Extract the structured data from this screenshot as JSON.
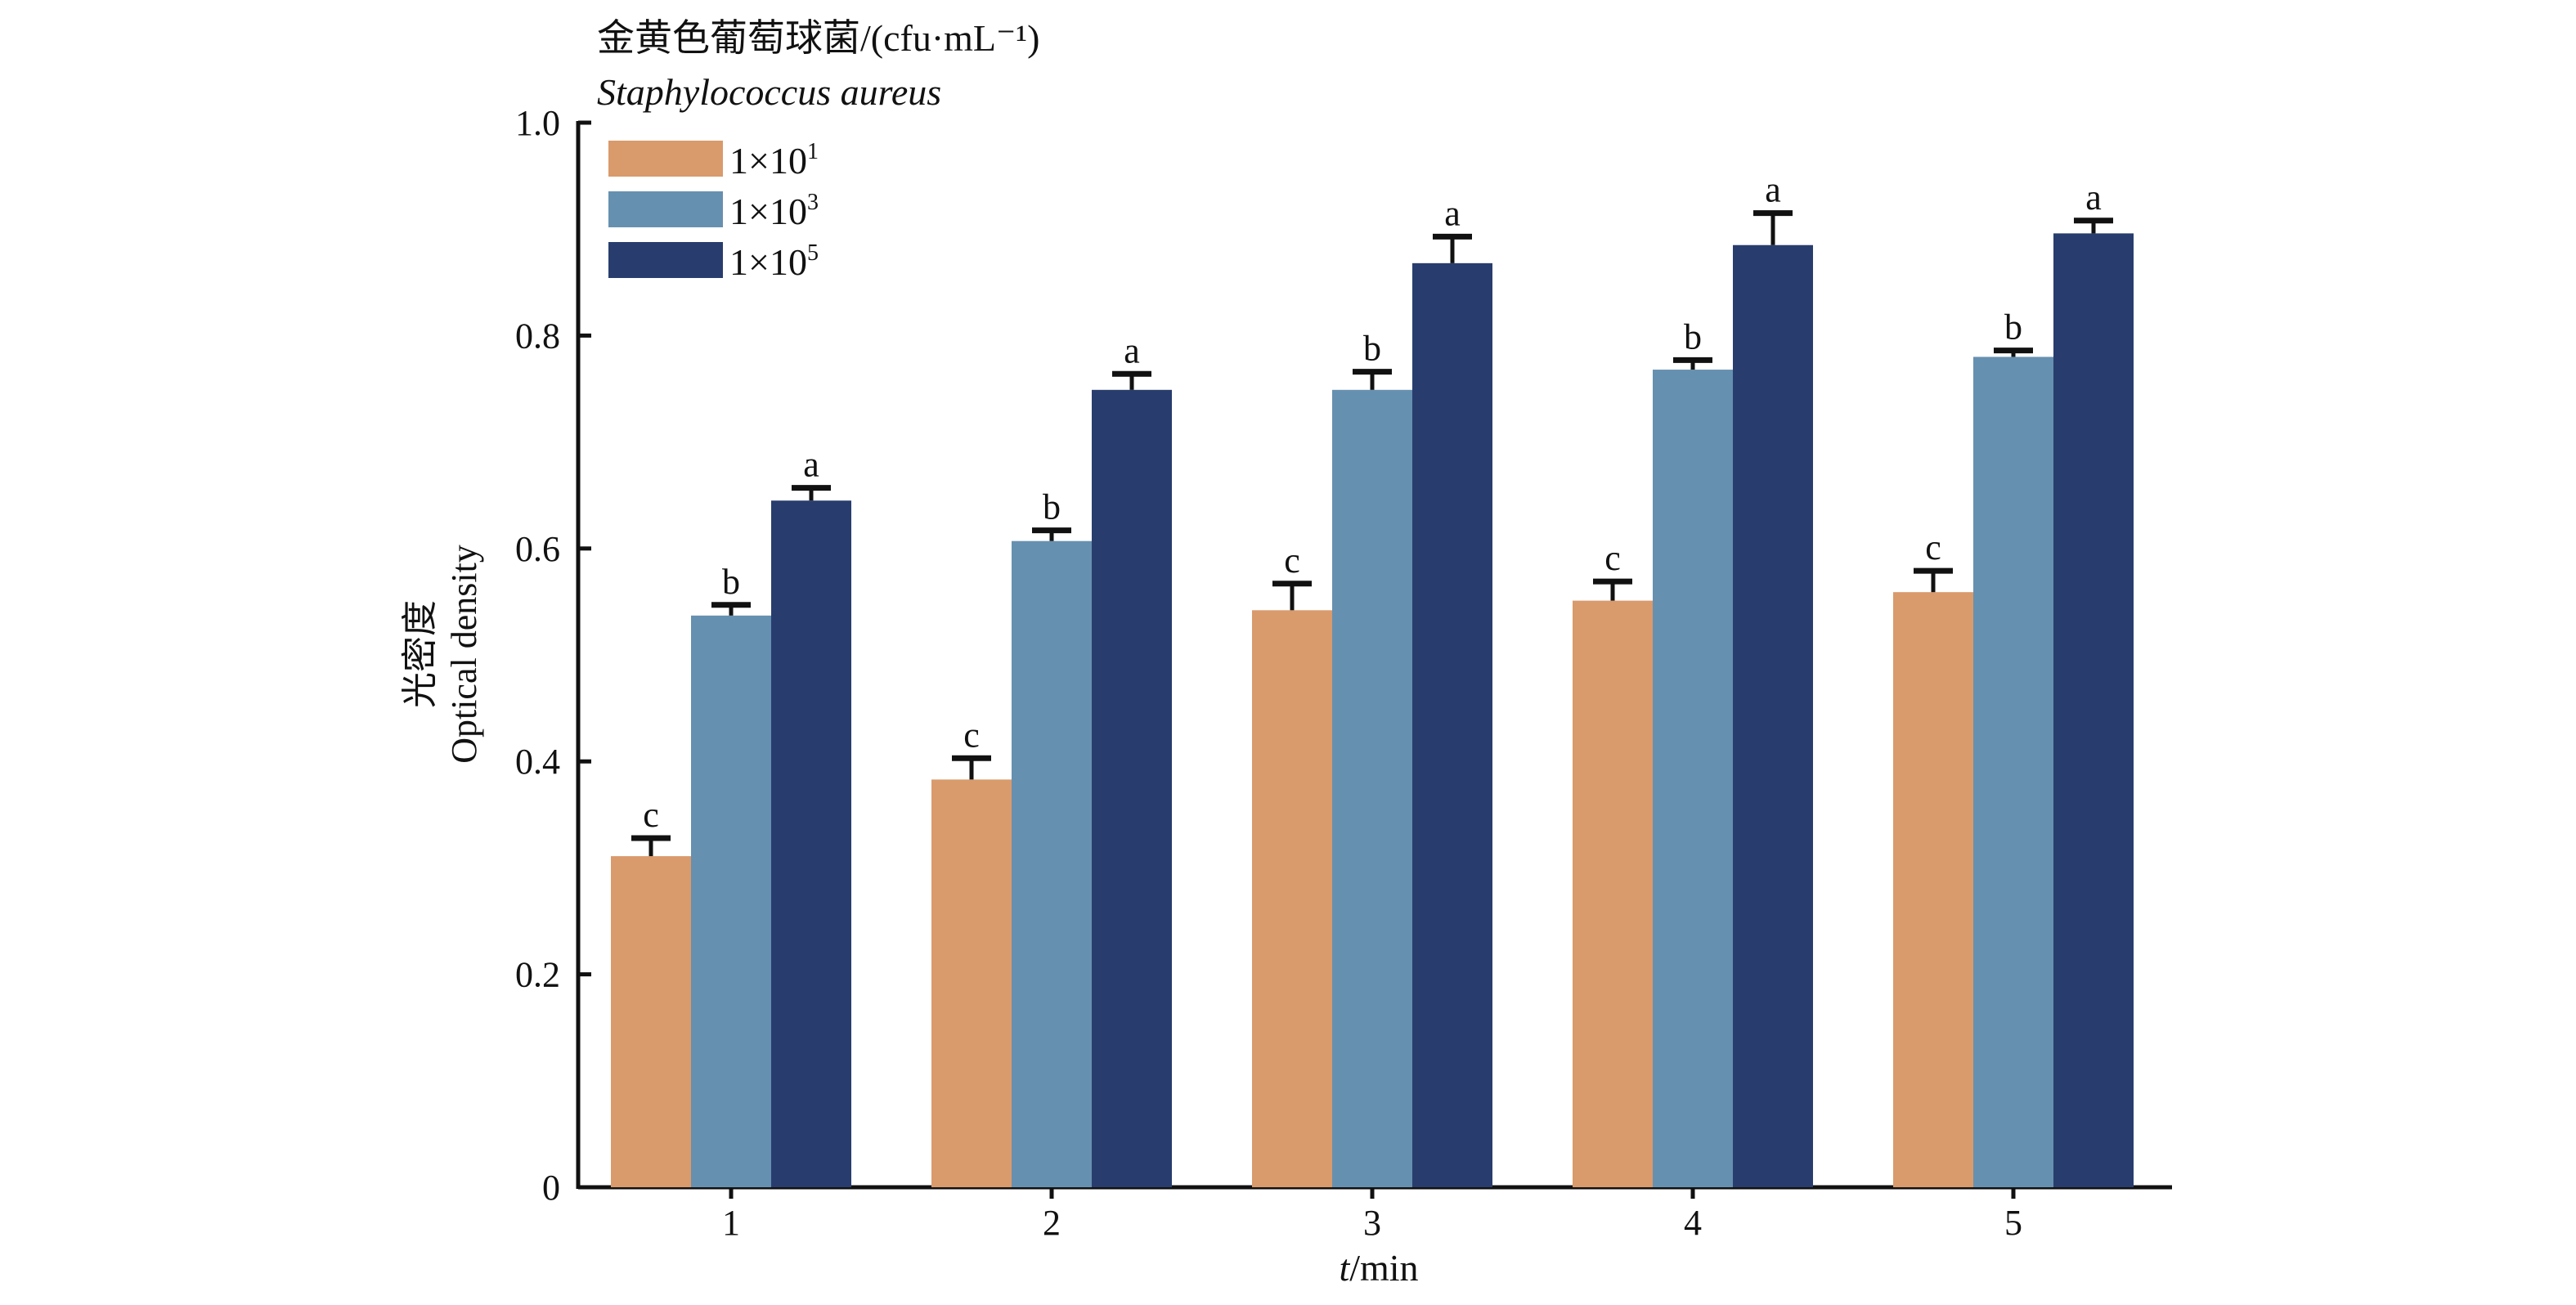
{
  "chart_data": {
    "type": "bar",
    "legend_title_cn": "金黄色葡萄球菌/(cfu·mL⁻¹)",
    "legend_title_en": "Staphylococcus aureus",
    "legend_position": "top-left",
    "xlabel_italic": "t",
    "xlabel_rest": "/min",
    "ylabel_cn": "光密度",
    "ylabel_en": "Optical density",
    "ylim": [
      0,
      1.0
    ],
    "yticks": [
      "0",
      "0.2",
      "0.4",
      "0.6",
      "0.8",
      "1.0"
    ],
    "ytick_values": [
      0,
      0.2,
      0.4,
      0.6,
      0.8,
      1.0
    ],
    "categories": [
      "1",
      "2",
      "3",
      "4",
      "5"
    ],
    "series": [
      {
        "name": "1×10¹",
        "base": "1×10",
        "exp": "1",
        "color": "#d99a6c",
        "values": [
          0.311,
          0.383,
          0.542,
          0.551,
          0.559
        ],
        "errors": [
          0.017,
          0.02,
          0.025,
          0.018,
          0.02
        ],
        "letters": [
          "c",
          "c",
          "c",
          "c",
          "c"
        ]
      },
      {
        "name": "1×10³",
        "base": "1×10",
        "exp": "3",
        "color": "#6690b0",
        "values": [
          0.537,
          0.607,
          0.749,
          0.768,
          0.78
        ],
        "errors": [
          0.01,
          0.01,
          0.017,
          0.009,
          0.006
        ],
        "letters": [
          "b",
          "b",
          "b",
          "b",
          "b"
        ]
      },
      {
        "name": "1×10⁵",
        "base": "1×10",
        "exp": "5",
        "color": "#283d6e",
        "values": [
          0.645,
          0.749,
          0.868,
          0.885,
          0.896
        ],
        "errors": [
          0.012,
          0.015,
          0.025,
          0.03,
          0.012
        ],
        "letters": [
          "a",
          "a",
          "a",
          "a",
          "a"
        ]
      }
    ]
  }
}
